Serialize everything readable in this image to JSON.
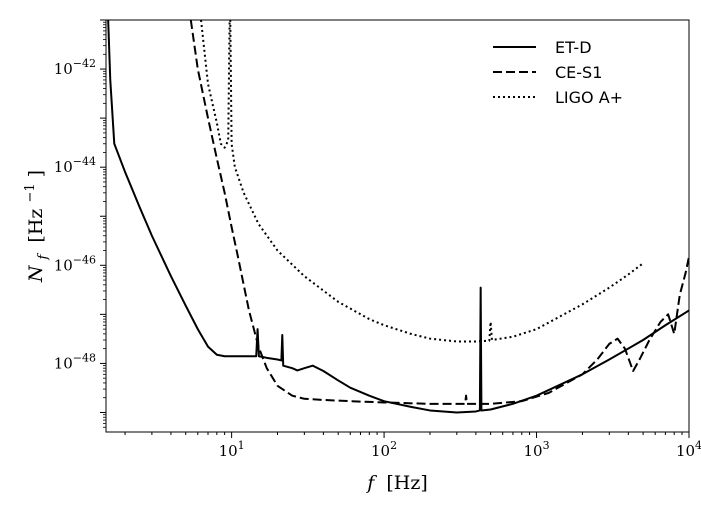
{
  "chart_data": {
    "type": "line",
    "xscale": "log",
    "yscale": "log",
    "xlim": [
      1.5,
      10000
    ],
    "ylim": [
      4e-50,
      1e-41
    ],
    "xlabel": {
      "italic": "f",
      "unit": "[Hz]"
    },
    "ylabel": {
      "italic": "N",
      "sub": "f",
      "unit": "[Hz",
      "unit_sup": "−1",
      "unit_end": "]"
    },
    "x_ticks": [
      {
        "value": 10,
        "base": "10",
        "exp": "1"
      },
      {
        "value": 100,
        "base": "10",
        "exp": "2"
      },
      {
        "value": 1000,
        "base": "10",
        "exp": "3"
      },
      {
        "value": 10000,
        "base": "10",
        "exp": "4"
      }
    ],
    "y_ticks": [
      {
        "value": 1e-48,
        "base": "10",
        "exp": "−48"
      },
      {
        "value": 1e-46,
        "base": "10",
        "exp": "−46"
      },
      {
        "value": 1e-44,
        "base": "10",
        "exp": "−44"
      },
      {
        "value": 1e-42,
        "base": "10",
        "exp": "−42"
      }
    ],
    "grid": false,
    "legend": "top-right",
    "series": [
      {
        "name": "ET-D",
        "style": "solid",
        "points": [
          [
            1.55,
            1e-41
          ],
          [
            1.6,
            6e-43
          ],
          [
            1.7,
            3e-44
          ],
          [
            2.0,
            8e-45
          ],
          [
            2.5,
            1.5e-45
          ],
          [
            3.0,
            4e-46
          ],
          [
            4.0,
            6e-47
          ],
          [
            5.0,
            1.5e-47
          ],
          [
            6.0,
            5e-48
          ],
          [
            7.0,
            2.2e-48
          ],
          [
            8.0,
            1.5e-48
          ],
          [
            9.0,
            1.4e-48
          ],
          [
            10,
            1.4e-48
          ],
          [
            12,
            1.4e-48
          ],
          [
            14.5,
            1.4e-48
          ],
          [
            14.8,
            5e-48
          ],
          [
            15.1,
            1.4e-48
          ],
          [
            17,
            1.3e-48
          ],
          [
            20,
            1.2e-48
          ],
          [
            21.2,
            1.15e-48
          ],
          [
            21.5,
            3.8e-48
          ],
          [
            21.8,
            9e-49
          ],
          [
            25,
            8e-49
          ],
          [
            27,
            7.2e-49
          ],
          [
            30,
            8e-49
          ],
          [
            34,
            9e-49
          ],
          [
            40,
            7e-49
          ],
          [
            50,
            4.5e-49
          ],
          [
            60,
            3.2e-49
          ],
          [
            80,
            2.2e-49
          ],
          [
            100,
            1.7e-49
          ],
          [
            150,
            1.3e-49
          ],
          [
            200,
            1.1e-49
          ],
          [
            300,
            1e-49
          ],
          [
            400,
            1.05e-49
          ],
          [
            425,
            1.1e-49
          ],
          [
            430,
            3.5e-47
          ],
          [
            435,
            1.1e-49
          ],
          [
            500,
            1.15e-49
          ],
          [
            700,
            1.5e-49
          ],
          [
            1000,
            2.2e-49
          ],
          [
            2000,
            6e-49
          ],
          [
            3000,
            1.2e-48
          ],
          [
            5000,
            3e-48
          ],
          [
            7000,
            6e-48
          ],
          [
            10000,
            1.2e-47
          ]
        ]
      },
      {
        "name": "CE-S1",
        "style": "dashed",
        "points": [
          [
            5.4,
            1e-41
          ],
          [
            6.0,
            1e-42
          ],
          [
            7.0,
            1e-43
          ],
          [
            8.0,
            1.5e-44
          ],
          [
            9.0,
            3e-45
          ],
          [
            10,
            6e-46
          ],
          [
            11,
            1.5e-46
          ],
          [
            12,
            4e-47
          ],
          [
            13,
            1.2e-47
          ],
          [
            14,
            5e-48
          ],
          [
            15,
            2.2e-48
          ],
          [
            17,
            8e-49
          ],
          [
            20,
            3.5e-49
          ],
          [
            25,
            2.2e-49
          ],
          [
            30,
            1.9e-49
          ],
          [
            40,
            1.8e-49
          ],
          [
            60,
            1.7e-49
          ],
          [
            100,
            1.6e-49
          ],
          [
            200,
            1.5e-49
          ],
          [
            300,
            1.5e-49
          ],
          [
            340,
            1.5e-49
          ],
          [
            345,
            2.2e-49
          ],
          [
            350,
            1.5e-49
          ],
          [
            500,
            1.5e-49
          ],
          [
            800,
            1.7e-49
          ],
          [
            1200,
            2.5e-49
          ],
          [
            2000,
            6e-49
          ],
          [
            2500,
            1.2e-48
          ],
          [
            3000,
            2.5e-48
          ],
          [
            3400,
            3.2e-48
          ],
          [
            3800,
            2e-48
          ],
          [
            4300,
            7e-49
          ],
          [
            4800,
            1.3e-48
          ],
          [
            5500,
            3e-48
          ],
          [
            6500,
            7e-48
          ],
          [
            7300,
            1e-47
          ],
          [
            8000,
            4e-48
          ],
          [
            8700,
            2.5e-47
          ],
          [
            9500,
            7e-47
          ],
          [
            10000,
            1.5e-46
          ]
        ]
      },
      {
        "name": "LIGO A+",
        "style": "dotted",
        "points": [
          [
            6.3,
            1e-41
          ],
          [
            7.0,
            5e-43
          ],
          [
            8.0,
            8e-44
          ],
          [
            8.5,
            3e-44
          ],
          [
            9.0,
            2.5e-44
          ],
          [
            9.5,
            3.5e-44
          ],
          [
            9.7,
            1e-41
          ],
          [
            9.8,
            1e-41
          ],
          [
            10,
            3e-44
          ],
          [
            10.5,
            1e-44
          ],
          [
            12,
            3e-45
          ],
          [
            15,
            7e-46
          ],
          [
            20,
            2e-46
          ],
          [
            30,
            6e-47
          ],
          [
            50,
            1.8e-47
          ],
          [
            80,
            8e-48
          ],
          [
            100,
            6e-48
          ],
          [
            150,
            4e-48
          ],
          [
            200,
            3.2e-48
          ],
          [
            300,
            2.8e-48
          ],
          [
            400,
            2.8e-48
          ],
          [
            490,
            2.9e-48
          ],
          [
            500,
            7e-48
          ],
          [
            510,
            3e-48
          ],
          [
            700,
            3.5e-48
          ],
          [
            1000,
            5e-48
          ],
          [
            2000,
            1.6e-47
          ],
          [
            3000,
            3.5e-47
          ],
          [
            4000,
            6.5e-47
          ],
          [
            5000,
            1.1e-46
          ]
        ]
      }
    ]
  }
}
